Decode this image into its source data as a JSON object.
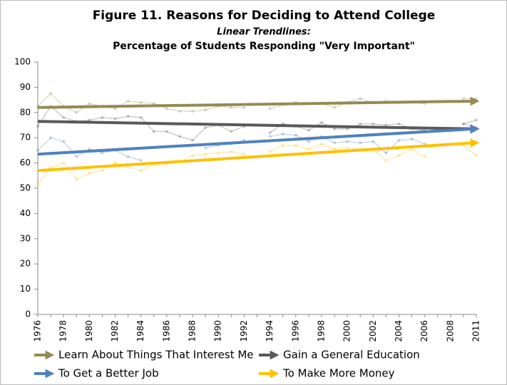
{
  "chart_data": {
    "type": "line",
    "title": "Figure 11.  Reasons for Deciding to Attend College",
    "subtitle": "Linear Trendlines:",
    "description": "Percentage of Students Responding \"Very Important\"",
    "categories": [
      "1976",
      null,
      "1978",
      null,
      "1980",
      null,
      "1982",
      null,
      "1984",
      null,
      "1986",
      null,
      "1988",
      null,
      "1990",
      null,
      "1992",
      null,
      "1994",
      null,
      "1996",
      null,
      "1998",
      null,
      "2000",
      null,
      "2002",
      null,
      "2004",
      null,
      "2006",
      null,
      "2008",
      null,
      "2011"
    ],
    "ylim": [
      0,
      100
    ],
    "yticks": [
      0,
      10,
      20,
      30,
      40,
      50,
      60,
      70,
      80,
      90,
      100
    ],
    "grid": false,
    "series": [
      {
        "name": "Learn About Things That Interest Me",
        "color": "#948a54",
        "values": [
          82.5,
          87.5,
          82.5,
          80,
          83.5,
          82.5,
          81.5,
          84.5,
          84,
          83.5,
          81.5,
          80.5,
          80.5,
          81,
          82.5,
          82,
          82,
          null,
          81.5,
          83,
          84,
          83.5,
          83.5,
          82,
          84,
          85.5,
          84,
          84.5,
          84,
          84,
          83.5,
          null,
          null,
          85.5,
          85.5
        ],
        "trend": [
          82,
          84.5
        ]
      },
      {
        "name": "Gain a General Education",
        "color": "#595959",
        "values": [
          74.5,
          82.5,
          78,
          76.5,
          77,
          78,
          77.5,
          78.5,
          78,
          72.5,
          72.5,
          70.5,
          69,
          74,
          75,
          72.5,
          74.5,
          null,
          72,
          75.5,
          74.5,
          73,
          76,
          73.5,
          73.5,
          75.5,
          75.5,
          75,
          75.5,
          73.5,
          73,
          null,
          null,
          75.5,
          77
        ],
        "trend": [
          76.5,
          73.5
        ]
      },
      {
        "name": "To Get a Better Job",
        "color": "#4f81bd",
        "values": [
          65,
          70,
          68.5,
          62.5,
          65.5,
          64,
          65,
          62.5,
          61,
          null,
          null,
          null,
          null,
          66,
          67,
          67.5,
          69,
          null,
          70.5,
          71.5,
          71,
          68.5,
          70.5,
          68,
          68.5,
          68,
          68.5,
          64,
          69,
          69.5,
          67.5,
          null,
          null,
          75.5,
          74
        ],
        "trend": [
          63.5,
          73.5
        ]
      },
      {
        "name": "To Make More Money",
        "color": "#ffc000",
        "values": [
          51.5,
          58,
          60,
          53.5,
          56,
          57,
          60,
          58.5,
          57,
          59.5,
          59.5,
          60.5,
          63,
          63.5,
          64,
          64.5,
          63.5,
          null,
          64.5,
          67,
          67,
          65.5,
          67.5,
          65.5,
          66,
          65.5,
          65.5,
          61,
          63,
          65.5,
          62.5,
          null,
          null,
          67,
          63
        ],
        "trend": [
          57,
          68
        ]
      }
    ]
  }
}
